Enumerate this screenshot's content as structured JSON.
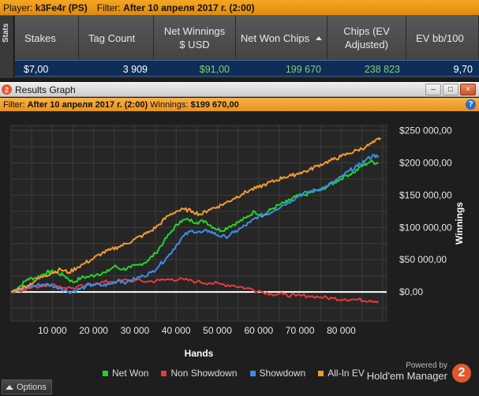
{
  "top_filter": {
    "player_label": "Player:",
    "player": "k3Fe4r (PS)",
    "filter_label": "Filter:",
    "filter": "After 10 апреля 2017 г. (2:00)"
  },
  "stats": {
    "tab_label": "Stats",
    "columns": [
      "Stakes",
      "Tag Count",
      "Net Winnings $ USD",
      "Net Won Chips",
      "Chips (EV Adjusted)",
      "EV bb/100"
    ],
    "row": [
      "$7,00",
      "3 909",
      "$91,00",
      "199 670",
      "238 823",
      "9,70"
    ]
  },
  "graph_window": {
    "title": "Results Graph",
    "logo_text": "2",
    "buttons": [
      "–",
      "□",
      "×"
    ]
  },
  "graph_filter": {
    "filter_label": "Filter:",
    "filter": "After 10 апреля 2017 г. (2:00)",
    "winnings_label": "Winnings:",
    "winnings": "$199 670,00",
    "help_icon": "?"
  },
  "chart_data": {
    "type": "line",
    "xlabel": "Hands",
    "ylabel": "Winnings",
    "xlim": [
      0,
      91000
    ],
    "ylim": [
      -45000,
      258000
    ],
    "x_ticks": [
      "10 000",
      "20 000",
      "30 000",
      "40 000",
      "50 000",
      "60 000",
      "70 000",
      "80 000"
    ],
    "x_tick_values": [
      10000,
      20000,
      30000,
      40000,
      50000,
      60000,
      70000,
      80000
    ],
    "y_ticks": [
      "$0,00",
      "$50 000,00",
      "$100 000,00",
      "$150 000,00",
      "$200 000,00",
      "$250 000,00"
    ],
    "y_tick_values": [
      0,
      50000,
      100000,
      150000,
      200000,
      250000
    ],
    "grid": true,
    "legend_position": "bottom",
    "series": [
      {
        "name": "Net Won",
        "color": "#22d42a",
        "x": [
          0,
          2000,
          4000,
          6000,
          8000,
          9500,
          11000,
          13000,
          15000,
          17000,
          19000,
          21000,
          23000,
          25000,
          27000,
          29000,
          31000,
          33000,
          35000,
          37000,
          39000,
          41000,
          43000,
          45000,
          47000,
          49000,
          51000,
          53000,
          55000,
          57000,
          59000,
          61000,
          63000,
          65000,
          67000,
          69000,
          71000,
          73000,
          75000,
          77000,
          79000,
          81000,
          83000,
          85000,
          87000,
          89000
        ],
        "y": [
          0,
          8000,
          20000,
          22000,
          28000,
          32000,
          30000,
          25000,
          15000,
          22000,
          24000,
          28000,
          30000,
          40000,
          35000,
          38000,
          42000,
          48000,
          60000,
          78000,
          95000,
          110000,
          112000,
          108000,
          110000,
          100000,
          95000,
          102000,
          108000,
          115000,
          125000,
          118000,
          128000,
          135000,
          140000,
          148000,
          150000,
          155000,
          158000,
          165000,
          172000,
          180000,
          185000,
          195000,
          202000,
          199670
        ]
      },
      {
        "name": "Non Showdown",
        "color": "#e83a3a",
        "x": [
          0,
          3000,
          6000,
          9000,
          12000,
          15000,
          18000,
          21000,
          24000,
          27000,
          30000,
          33000,
          36000,
          39000,
          42000,
          45000,
          48000,
          51000,
          54000,
          57000,
          60000,
          63000,
          66000,
          69000,
          72000,
          75000,
          78000,
          81000,
          84000,
          87000,
          89000
        ],
        "y": [
          0,
          4000,
          8000,
          12000,
          8000,
          6000,
          10000,
          14000,
          16000,
          18000,
          18000,
          16000,
          18000,
          20000,
          19000,
          16000,
          14000,
          12000,
          10000,
          6000,
          2000,
          -3000,
          -4000,
          -6000,
          -6000,
          -8000,
          -10000,
          -11000,
          -12000,
          -13000,
          -14000
        ]
      },
      {
        "name": "Showdown",
        "color": "#3b8ee8",
        "x": [
          0,
          2000,
          4000,
          6000,
          8000,
          10000,
          12000,
          14000,
          16000,
          18000,
          20000,
          22000,
          24000,
          26000,
          28000,
          30000,
          32000,
          34000,
          36000,
          38000,
          40000,
          42000,
          44000,
          46000,
          48000,
          50000,
          52000,
          54000,
          56000,
          58000,
          60000,
          62000,
          64000,
          66000,
          68000,
          70000,
          72000,
          74000,
          76000,
          78000,
          80000,
          82000,
          84000,
          86000,
          88000,
          89000
        ],
        "y": [
          0,
          3000,
          8000,
          10000,
          12000,
          10000,
          6000,
          0,
          3000,
          8000,
          12000,
          10000,
          12000,
          18000,
          15000,
          20000,
          25000,
          30000,
          42000,
          55000,
          72000,
          88000,
          95000,
          92000,
          95000,
          88000,
          85000,
          92000,
          100000,
          108000,
          118000,
          120000,
          128000,
          135000,
          142000,
          150000,
          155000,
          158000,
          162000,
          170000,
          178000,
          188000,
          195000,
          205000,
          212000,
          208000
        ]
      },
      {
        "name": "All-In EV",
        "color": "#f49a30",
        "x": [
          0,
          2000,
          4000,
          6000,
          8000,
          10000,
          12000,
          14000,
          16000,
          18000,
          20000,
          22000,
          24000,
          26000,
          28000,
          30000,
          32000,
          34000,
          36000,
          38000,
          40000,
          42000,
          44000,
          46000,
          48000,
          50000,
          52000,
          54000,
          56000,
          58000,
          60000,
          62000,
          64000,
          66000,
          68000,
          70000,
          72000,
          74000,
          76000,
          78000,
          80000,
          82000,
          84000,
          86000,
          88000,
          89500
        ],
        "y": [
          0,
          5000,
          10000,
          18000,
          25000,
          30000,
          35000,
          30000,
          38000,
          45000,
          52000,
          60000,
          65000,
          70000,
          75000,
          82000,
          88000,
          95000,
          105000,
          118000,
          125000,
          128000,
          125000,
          120000,
          128000,
          132000,
          138000,
          145000,
          152000,
          158000,
          162000,
          168000,
          172000,
          178000,
          180000,
          185000,
          188000,
          195000,
          200000,
          205000,
          210000,
          215000,
          220000,
          225000,
          232000,
          238823
        ]
      }
    ]
  },
  "bottom": {
    "options_label": "Options",
    "powered_by": "Powered by",
    "brand": "Hold'em Manager",
    "brand_logo": "2"
  }
}
